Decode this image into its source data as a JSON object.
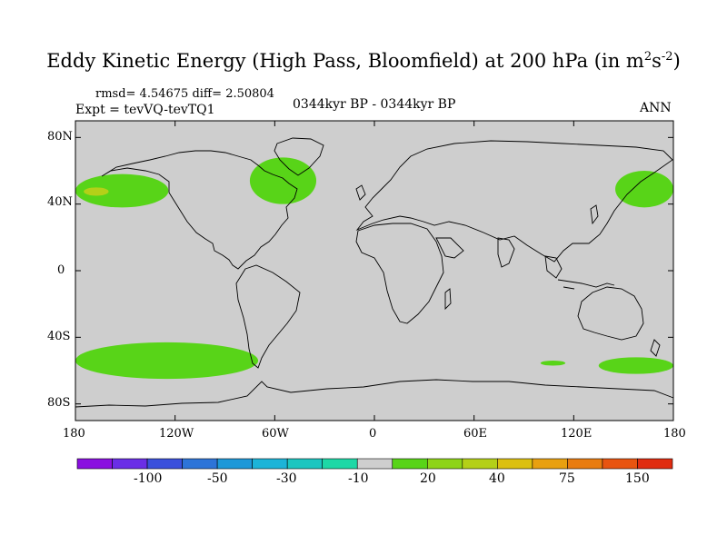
{
  "title": {
    "main": "Eddy Kinetic Energy (High Pass, Bloomfield) at 200 hPa (in m",
    "sup1": "2",
    "mid": "s",
    "sup2": "-2",
    "close": ")"
  },
  "stats": "rmsd= 4.54675  diff= 2.50804",
  "experiment": "Expt = tevVQ-tevTQ1",
  "period": "0344kyr BP - 0344kyr BP",
  "season": "ANN",
  "lat_labels": [
    "80N",
    "40N",
    "0",
    "40S",
    "80S"
  ],
  "lon_labels": [
    "180",
    "120W",
    "60W",
    "0",
    "60E",
    "120E",
    "180"
  ],
  "colorbar": {
    "colors": [
      "#8a10e0",
      "#6a2ee6",
      "#3a50dc",
      "#2d74d8",
      "#1e98d8",
      "#1cb4d8",
      "#1cc6c0",
      "#1ed8a6",
      "#cecece",
      "#58d418",
      "#8ed418",
      "#b4d018",
      "#dcc010",
      "#e8a010",
      "#e87c10",
      "#e85410",
      "#e02c10"
    ],
    "labels": [
      "-100",
      "-50",
      "-30",
      "-10",
      "20",
      "40",
      "75",
      "150"
    ]
  },
  "colors": {
    "background_field": "#cecece",
    "positive_low": "#58d418",
    "positive_mid": "#b4d018"
  },
  "map": {
    "projection": "cylindrical-equidistant",
    "domain": {
      "lon": [
        -180,
        180
      ],
      "lat": [
        -90,
        90
      ]
    },
    "regions": [
      {
        "name": "north-pacific-anomaly",
        "level": "positive_low",
        "lon": [
          -180,
          -124
        ],
        "lat": [
          38,
          58
        ]
      },
      {
        "name": "north-pacific-core",
        "level": "positive_mid",
        "lon": [
          -175,
          -160
        ],
        "lat": [
          45,
          50
        ]
      },
      {
        "name": "north-atlantic-anomaly",
        "level": "positive_low",
        "lon": [
          -75,
          -35
        ],
        "lat": [
          40,
          68
        ]
      },
      {
        "name": "nw-pacific-anomaly",
        "level": "positive_low",
        "lon": [
          145,
          180
        ],
        "lat": [
          38,
          60
        ]
      },
      {
        "name": "south-pacific-anomaly",
        "level": "positive_low",
        "lon": [
          -180,
          -70
        ],
        "lat": [
          -65,
          -43
        ]
      },
      {
        "name": "south-indian-anomaly",
        "level": "positive_low",
        "lon": [
          100,
          115
        ],
        "lat": [
          -57,
          -54
        ]
      },
      {
        "name": "southern-ocean-anomaly",
        "level": "positive_low",
        "lon": [
          135,
          180
        ],
        "lat": [
          -62,
          -52
        ]
      }
    ]
  }
}
